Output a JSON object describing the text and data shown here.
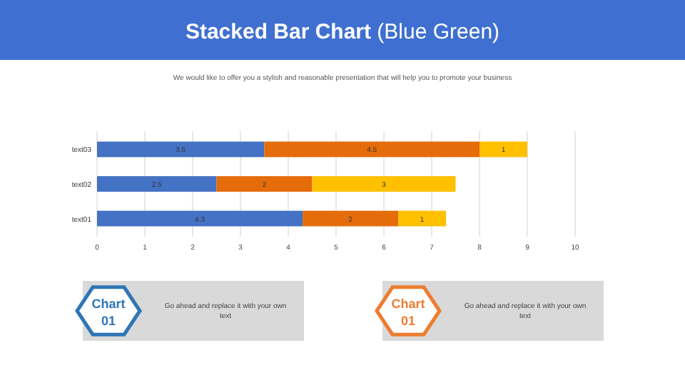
{
  "chart_data": {
    "type": "bar",
    "orientation": "horizontal",
    "stacked": true,
    "title": "Stacked Bar Chart (Blue Green)",
    "subtitle": "We would like to offer you a stylish and reasonable presentation that will help you to promote your business",
    "categories": [
      "text03",
      "text02",
      "text01"
    ],
    "series": [
      {
        "color": "#4472c4",
        "values": [
          3.5,
          2.5,
          4.3
        ]
      },
      {
        "color": "#e46c0a",
        "values": [
          4.5,
          2,
          2
        ]
      },
      {
        "color": "#ffc000",
        "values": [
          1,
          3,
          1
        ]
      }
    ],
    "xlim": [
      0,
      10
    ],
    "xticks": [
      0,
      1,
      2,
      3,
      4,
      5,
      6,
      7,
      8,
      9,
      10
    ],
    "grid": "x",
    "data_labels": true,
    "annotations": [
      "Chart 01",
      "Go ahead and replace it with your own text",
      "Chart 01",
      "Go ahead and replace it with your own text"
    ]
  }
}
